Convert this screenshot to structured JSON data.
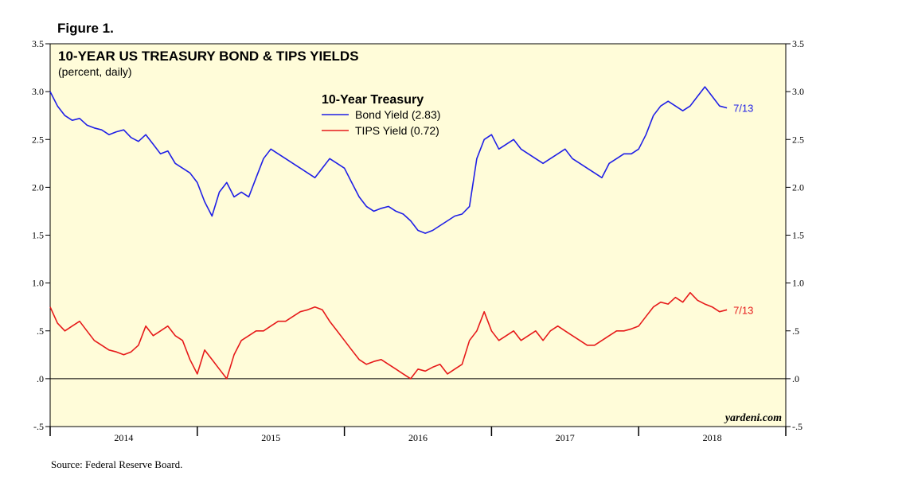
{
  "figure_label": "Figure 1.",
  "source": "Source: Federal Reserve Board.",
  "chart_data": {
    "type": "line",
    "title": "10-YEAR US TREASURY BOND & TIPS YIELDS",
    "subtitle": "(percent, daily)",
    "legend_title": "10-Year Treasury",
    "legend_placement": "top-center",
    "watermark": "yardeni.com",
    "ylim": [
      -0.5,
      3.5
    ],
    "x_range": [
      2013.5,
      2018.5
    ],
    "y_ticks": [
      "3.5",
      "3.0",
      "2.5",
      "2.0",
      "1.5",
      "1.0",
      ".5",
      ".0",
      "-.5"
    ],
    "y_tick_values": [
      3.5,
      3.0,
      2.5,
      2.0,
      1.5,
      1.0,
      0.5,
      0.0,
      -0.5
    ],
    "x_tick_labels": [
      "2014",
      "2015",
      "2016",
      "2017",
      "2018"
    ],
    "x_tick_centers": [
      2014.0,
      2015.0,
      2016.0,
      2017.0,
      2018.0
    ],
    "x_year_boundaries": [
      2013.5,
      2014.5,
      2015.5,
      2016.5,
      2017.5,
      2018.5
    ],
    "zero_line": 0,
    "series": [
      {
        "name": "Bond Yield (2.83)",
        "color": "#1f1fe6",
        "end_label": "7/13",
        "x": [
          2013.5,
          2013.55,
          2013.6,
          2013.65,
          2013.7,
          2013.75,
          2013.8,
          2013.85,
          2013.9,
          2013.95,
          2014.0,
          2014.05,
          2014.1,
          2014.15,
          2014.2,
          2014.25,
          2014.3,
          2014.35,
          2014.4,
          2014.45,
          2014.5,
          2014.55,
          2014.6,
          2014.65,
          2014.7,
          2014.75,
          2014.8,
          2014.85,
          2014.9,
          2014.95,
          2015.0,
          2015.05,
          2015.1,
          2015.15,
          2015.2,
          2015.25,
          2015.3,
          2015.35,
          2015.4,
          2015.45,
          2015.5,
          2015.55,
          2015.6,
          2015.65,
          2015.7,
          2015.75,
          2015.8,
          2015.85,
          2015.9,
          2015.95,
          2016.0,
          2016.05,
          2016.1,
          2016.15,
          2016.2,
          2016.25,
          2016.3,
          2016.35,
          2016.4,
          2016.45,
          2016.5,
          2016.55,
          2016.6,
          2016.65,
          2016.7,
          2016.75,
          2016.8,
          2016.85,
          2016.9,
          2016.95,
          2017.0,
          2017.05,
          2017.1,
          2017.15,
          2017.2,
          2017.25,
          2017.3,
          2017.35,
          2017.4,
          2017.45,
          2017.5,
          2017.55,
          2017.6,
          2017.65,
          2017.7,
          2017.75,
          2017.8,
          2017.85,
          2017.9,
          2017.95,
          2018.0,
          2018.05,
          2018.1
        ],
        "values": [
          3.0,
          2.85,
          2.75,
          2.7,
          2.72,
          2.65,
          2.62,
          2.6,
          2.55,
          2.58,
          2.6,
          2.52,
          2.48,
          2.55,
          2.45,
          2.35,
          2.38,
          2.25,
          2.2,
          2.15,
          2.05,
          1.85,
          1.7,
          1.95,
          2.05,
          1.9,
          1.95,
          1.9,
          2.1,
          2.3,
          2.4,
          2.35,
          2.3,
          2.25,
          2.2,
          2.15,
          2.1,
          2.2,
          2.3,
          2.25,
          2.2,
          2.05,
          1.9,
          1.8,
          1.75,
          1.78,
          1.8,
          1.75,
          1.72,
          1.65,
          1.55,
          1.52,
          1.55,
          1.6,
          1.65,
          1.7,
          1.72,
          1.8,
          2.3,
          2.5,
          2.55,
          2.4,
          2.45,
          2.5,
          2.4,
          2.35,
          2.3,
          2.25,
          2.3,
          2.35,
          2.4,
          2.3,
          2.25,
          2.2,
          2.15,
          2.1,
          2.25,
          2.3,
          2.35,
          2.35,
          2.4,
          2.55,
          2.75,
          2.85,
          2.9,
          2.85,
          2.8,
          2.85,
          2.95,
          3.05,
          2.95,
          2.85,
          2.83
        ]
      },
      {
        "name": "TIPS Yield (0.72)",
        "color": "#e61a1a",
        "end_label": "7/13",
        "x": [
          2013.5,
          2013.55,
          2013.6,
          2013.65,
          2013.7,
          2013.75,
          2013.8,
          2013.85,
          2013.9,
          2013.95,
          2014.0,
          2014.05,
          2014.1,
          2014.15,
          2014.2,
          2014.25,
          2014.3,
          2014.35,
          2014.4,
          2014.45,
          2014.5,
          2014.55,
          2014.6,
          2014.65,
          2014.7,
          2014.75,
          2014.8,
          2014.85,
          2014.9,
          2014.95,
          2015.0,
          2015.05,
          2015.1,
          2015.15,
          2015.2,
          2015.25,
          2015.3,
          2015.35,
          2015.4,
          2015.45,
          2015.5,
          2015.55,
          2015.6,
          2015.65,
          2015.7,
          2015.75,
          2015.8,
          2015.85,
          2015.9,
          2015.95,
          2016.0,
          2016.05,
          2016.1,
          2016.15,
          2016.2,
          2016.25,
          2016.3,
          2016.35,
          2016.4,
          2016.45,
          2016.5,
          2016.55,
          2016.6,
          2016.65,
          2016.7,
          2016.75,
          2016.8,
          2016.85,
          2016.9,
          2016.95,
          2017.0,
          2017.05,
          2017.1,
          2017.15,
          2017.2,
          2017.25,
          2017.3,
          2017.35,
          2017.4,
          2017.45,
          2017.5,
          2017.55,
          2017.6,
          2017.65,
          2017.7,
          2017.75,
          2017.8,
          2017.85,
          2017.9,
          2017.95,
          2018.0,
          2018.05,
          2018.1
        ],
        "values": [
          0.75,
          0.58,
          0.5,
          0.55,
          0.6,
          0.5,
          0.4,
          0.35,
          0.3,
          0.28,
          0.25,
          0.28,
          0.35,
          0.55,
          0.45,
          0.5,
          0.55,
          0.45,
          0.4,
          0.2,
          0.05,
          0.3,
          0.2,
          0.1,
          0.0,
          0.25,
          0.4,
          0.45,
          0.5,
          0.5,
          0.55,
          0.6,
          0.6,
          0.65,
          0.7,
          0.72,
          0.75,
          0.72,
          0.6,
          0.5,
          0.4,
          0.3,
          0.2,
          0.15,
          0.18,
          0.2,
          0.15,
          0.1,
          0.05,
          0.0,
          0.1,
          0.08,
          0.12,
          0.15,
          0.05,
          0.1,
          0.15,
          0.4,
          0.5,
          0.7,
          0.5,
          0.4,
          0.45,
          0.5,
          0.4,
          0.45,
          0.5,
          0.4,
          0.5,
          0.55,
          0.5,
          0.45,
          0.4,
          0.35,
          0.35,
          0.4,
          0.45,
          0.5,
          0.5,
          0.52,
          0.55,
          0.65,
          0.75,
          0.8,
          0.78,
          0.85,
          0.8,
          0.9,
          0.82,
          0.78,
          0.75,
          0.7,
          0.72
        ]
      }
    ]
  }
}
